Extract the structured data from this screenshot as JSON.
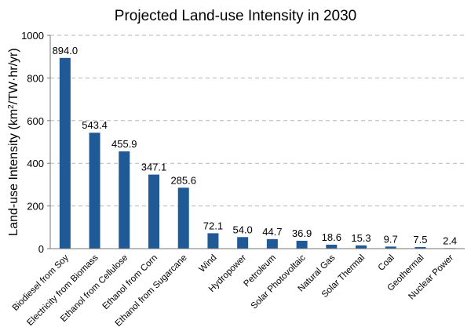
{
  "chart_data": {
    "type": "bar",
    "title": "Projected Land-use Intensity in 2030",
    "xlabel": "",
    "ylabel_prefix": "Land-use Intensity (km",
    "ylabel_sup": "2",
    "ylabel_suffix": "/TW·hr/yr)",
    "ylim": [
      0,
      1000
    ],
    "yticks": [
      0,
      200,
      400,
      600,
      800,
      1000
    ],
    "grid": true,
    "bar_color": "#1f5a96",
    "categories": [
      "Biodiesel from Soy",
      "Electricity from Biomass",
      "Ethanol from Cellulose",
      "Ethanol from Corn",
      "Ethanol from Sugarcane",
      "Wind",
      "Hydropower",
      "Petroleum",
      "Solar Photovoltaic",
      "Natural Gas",
      "Solar Thermal",
      "Coal",
      "Geothermal",
      "Nuclear Power"
    ],
    "values": [
      894.0,
      543.4,
      455.9,
      347.1,
      285.6,
      72.1,
      54.0,
      44.7,
      36.9,
      18.6,
      15.3,
      9.7,
      7.5,
      2.4
    ],
    "value_labels": [
      "894.0",
      "543.4",
      "455.9",
      "347.1",
      "285.6",
      "72.1",
      "54.0",
      "44.7",
      "36.9",
      "18.6",
      "15.3",
      "9.7",
      "7.5",
      "2.4"
    ]
  }
}
